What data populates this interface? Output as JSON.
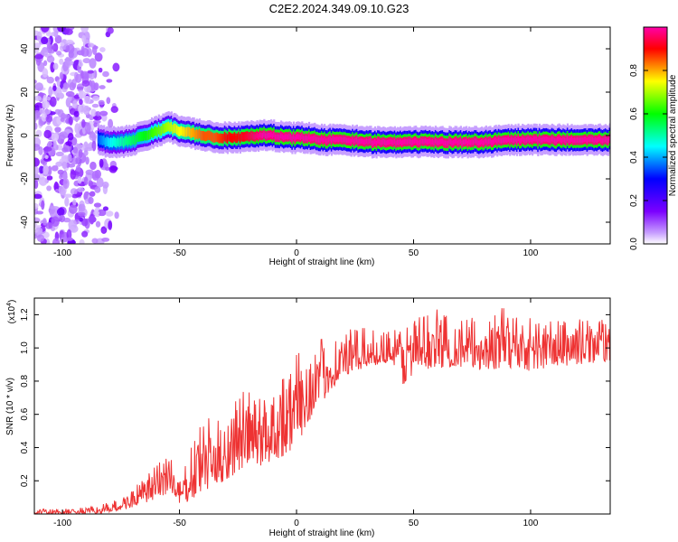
{
  "title": "C2E2.2024.349.09.10.G23",
  "chart_data": [
    {
      "type": "heatmap",
      "xlabel": "Height of straight line (km)",
      "ylabel": "Frequency (Hz)",
      "xlim": [
        -112,
        134
      ],
      "ylim": [
        -50,
        50
      ],
      "xticks": [
        -100,
        -50,
        0,
        50,
        100
      ],
      "xtick_labels": [
        "-100",
        "-50",
        "0",
        "50",
        "100"
      ],
      "yticks": [
        -40,
        -20,
        0,
        20,
        40
      ],
      "ytick_labels": [
        "-40",
        "-20",
        "0",
        "20",
        "40"
      ],
      "colorbar": {
        "label": "Normalized spectral amplitude",
        "range": [
          0,
          1
        ],
        "ticks": [
          0.0,
          0.2,
          0.4,
          0.6,
          0.8
        ],
        "tick_labels": [
          "0.0",
          "0.2",
          "0.4",
          "0.6",
          "0.8"
        ],
        "colormap": [
          "#ffffff",
          "#7b00ff",
          "#0000ff",
          "#00ffff",
          "#00ff00",
          "#ffff00",
          "#ff0000",
          "#ff00ff"
        ]
      },
      "ridge": {
        "x": [
          -85,
          -80,
          -75,
          -70,
          -65,
          -60,
          -55,
          -50,
          -45,
          -40,
          -35,
          -30,
          -25,
          -20,
          -15,
          -10,
          -5,
          0,
          5,
          10,
          15,
          20,
          30,
          40,
          50,
          60,
          70,
          80,
          90,
          100,
          110,
          120,
          134
        ],
        "frequency": [
          -2,
          -3,
          -3,
          -2,
          0,
          2,
          4,
          2,
          1,
          0,
          -1,
          -1,
          -1,
          0,
          0,
          0,
          -1,
          -1,
          -1,
          -2,
          -2,
          -2,
          -3,
          -3,
          -3,
          -3,
          -3,
          -3,
          -2,
          -2,
          -2,
          -2,
          -2
        ],
        "amplitude": [
          0.3,
          0.4,
          0.45,
          0.5,
          0.55,
          0.6,
          0.65,
          0.7,
          0.75,
          0.8,
          0.8,
          0.85,
          0.85,
          0.9,
          0.95,
          0.95,
          0.95,
          0.95,
          0.95,
          0.95,
          0.95,
          0.95,
          0.95,
          0.95,
          0.95,
          0.95,
          0.95,
          0.95,
          0.95,
          0.95,
          0.95,
          0.95,
          0.95
        ]
      },
      "noise_region_x": [
        -112,
        -75
      ]
    },
    {
      "type": "line",
      "xlabel": "Height of straight line (km)",
      "ylabel": "SNR (10 * v/v)",
      "scale_label": "(x10^4)",
      "xlim": [
        -112,
        134
      ],
      "ylim": [
        0,
        1.3
      ],
      "xticks": [
        -100,
        -50,
        0,
        50,
        100
      ],
      "xtick_labels": [
        "-100",
        "-50",
        "0",
        "50",
        "100"
      ],
      "yticks": [
        0.2,
        0.4,
        0.6,
        0.8,
        1.0,
        1.2
      ],
      "ytick_labels": [
        "0.2",
        "0.4",
        "0.6",
        "0.8",
        "1.0",
        "1.2"
      ],
      "series": [
        {
          "color": "#ee3333",
          "x": [
            -112,
            -100,
            -90,
            -85,
            -80,
            -75,
            -70,
            -65,
            -60,
            -55,
            -50,
            -45,
            -40,
            -35,
            -30,
            -25,
            -20,
            -15,
            -10,
            -5,
            0,
            5,
            10,
            15,
            20,
            25,
            30,
            35,
            40,
            45,
            50,
            60,
            70,
            80,
            90,
            100,
            110,
            120,
            134
          ],
          "envelope_low": [
            0.0,
            0.0,
            0.0,
            0.0,
            0.01,
            0.02,
            0.04,
            0.06,
            0.08,
            0.12,
            0.05,
            0.08,
            0.12,
            0.16,
            0.2,
            0.25,
            0.3,
            0.28,
            0.32,
            0.35,
            0.4,
            0.55,
            0.65,
            0.75,
            0.82,
            0.85,
            0.88,
            0.9,
            0.92,
            0.75,
            0.85,
            0.88,
            0.88,
            0.86,
            0.88,
            0.86,
            0.88,
            0.9,
            0.92
          ],
          "envelope_high": [
            0.03,
            0.03,
            0.04,
            0.05,
            0.07,
            0.1,
            0.15,
            0.22,
            0.3,
            0.45,
            0.2,
            0.4,
            0.62,
            0.55,
            0.62,
            0.75,
            0.74,
            0.72,
            0.82,
            0.9,
            0.98,
            1.02,
            1.05,
            1.08,
            1.1,
            1.12,
            1.12,
            1.1,
            1.12,
            1.18,
            1.2,
            1.24,
            1.2,
            1.18,
            1.26,
            1.2,
            1.18,
            1.18,
            1.18
          ]
        }
      ]
    }
  ]
}
